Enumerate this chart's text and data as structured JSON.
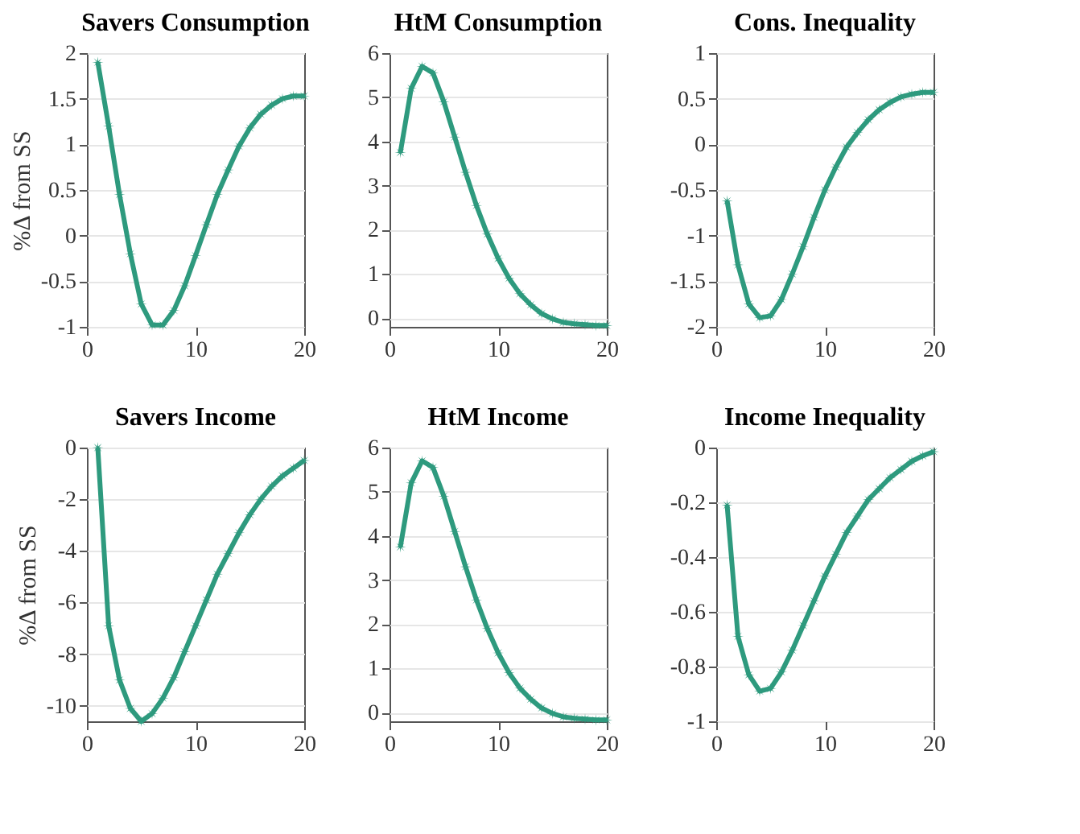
{
  "chart_data": [
    {
      "type": "line",
      "title": "Savers Consumption",
      "ylabel": "%Δ from SS",
      "color": "#2e9a7e",
      "marker": "star",
      "line_style": "solid",
      "grid": "y",
      "xlim": [
        0,
        20
      ],
      "xticks": [
        0,
        10,
        20
      ],
      "ylim": [
        -1,
        2
      ],
      "yticks": [
        -1,
        -0.5,
        0,
        0.5,
        1,
        1.5,
        2
      ],
      "x": [
        1,
        2,
        3,
        4,
        5,
        6,
        7,
        8,
        9,
        10,
        11,
        12,
        13,
        14,
        15,
        16,
        17,
        18,
        19,
        20
      ],
      "values": [
        1.9,
        1.2,
        0.45,
        -0.2,
        -0.75,
        -0.98,
        -0.98,
        -0.82,
        -0.55,
        -0.22,
        0.12,
        0.45,
        0.72,
        0.98,
        1.18,
        1.33,
        1.43,
        1.5,
        1.53,
        1.53
      ]
    },
    {
      "type": "line",
      "title": "HtM Consumption",
      "color": "#2e9a7e",
      "marker": "star",
      "line_style": "solid",
      "grid": "y",
      "xlim": [
        0,
        20
      ],
      "xticks": [
        0,
        10,
        20
      ],
      "ylim": [
        -0.2,
        6
      ],
      "yticks": [
        0,
        1,
        2,
        3,
        4,
        5,
        6
      ],
      "x": [
        1,
        2,
        3,
        4,
        5,
        6,
        7,
        8,
        9,
        10,
        11,
        12,
        13,
        14,
        15,
        16,
        17,
        18,
        19,
        20
      ],
      "values": [
        3.75,
        5.2,
        5.7,
        5.55,
        4.9,
        4.1,
        3.3,
        2.55,
        1.9,
        1.35,
        0.9,
        0.55,
        0.3,
        0.1,
        -0.02,
        -0.1,
        -0.13,
        -0.15,
        -0.17,
        -0.17
      ]
    },
    {
      "type": "line",
      "title": "Cons. Inequality",
      "color": "#2e9a7e",
      "marker": "star",
      "line_style": "solid",
      "grid": "y",
      "xlim": [
        0,
        20
      ],
      "xticks": [
        0,
        10,
        20
      ],
      "ylim": [
        -2,
        1
      ],
      "yticks": [
        -2,
        -1.5,
        -1,
        -0.5,
        0,
        0.5,
        1
      ],
      "x": [
        1,
        2,
        3,
        4,
        5,
        6,
        7,
        8,
        9,
        10,
        11,
        12,
        13,
        14,
        15,
        16,
        17,
        18,
        19,
        20
      ],
      "values": [
        -0.62,
        -1.32,
        -1.75,
        -1.9,
        -1.88,
        -1.7,
        -1.42,
        -1.12,
        -0.8,
        -0.5,
        -0.25,
        -0.03,
        0.13,
        0.27,
        0.38,
        0.46,
        0.52,
        0.55,
        0.57,
        0.57
      ]
    },
    {
      "type": "line",
      "title": "Savers Income",
      "ylabel": "%Δ from SS",
      "color": "#2e9a7e",
      "marker": "star",
      "line_style": "solid",
      "grid": "y",
      "xlim": [
        0,
        20
      ],
      "xticks": [
        0,
        10,
        20
      ],
      "ylim": [
        -10.6,
        0
      ],
      "yticks": [
        -10,
        -8,
        -6,
        -4,
        -2,
        0
      ],
      "x": [
        1,
        2,
        3,
        4,
        5,
        6,
        7,
        8,
        9,
        10,
        11,
        12,
        13,
        14,
        15,
        16,
        17,
        18,
        19,
        20
      ],
      "values": [
        0,
        -6.9,
        -9,
        -10.1,
        -10.6,
        -10.3,
        -9.7,
        -8.9,
        -7.9,
        -6.9,
        -5.9,
        -4.9,
        -4.1,
        -3.3,
        -2.6,
        -2.0,
        -1.5,
        -1.1,
        -0.8,
        -0.5
      ]
    },
    {
      "type": "line",
      "title": "HtM Income",
      "color": "#2e9a7e",
      "marker": "star",
      "line_style": "solid",
      "grid": "y",
      "xlim": [
        0,
        20
      ],
      "xticks": [
        0,
        10,
        20
      ],
      "ylim": [
        -0.2,
        6
      ],
      "yticks": [
        0,
        1,
        2,
        3,
        4,
        5,
        6
      ],
      "x": [
        1,
        2,
        3,
        4,
        5,
        6,
        7,
        8,
        9,
        10,
        11,
        12,
        13,
        14,
        15,
        16,
        17,
        18,
        19,
        20
      ],
      "values": [
        3.75,
        5.2,
        5.7,
        5.55,
        4.9,
        4.1,
        3.3,
        2.55,
        1.9,
        1.35,
        0.9,
        0.55,
        0.3,
        0.1,
        -0.02,
        -0.1,
        -0.13,
        -0.15,
        -0.17,
        -0.17
      ]
    },
    {
      "type": "line",
      "title": "Income Inequality",
      "color": "#2e9a7e",
      "marker": "star",
      "line_style": "solid",
      "grid": "y",
      "xlim": [
        0,
        20
      ],
      "xticks": [
        0,
        10,
        20
      ],
      "ylim": [
        -1,
        0
      ],
      "yticks": [
        -1,
        -0.8,
        -0.6,
        -0.4,
        -0.2,
        0
      ],
      "x": [
        1,
        2,
        3,
        4,
        5,
        6,
        7,
        8,
        9,
        10,
        11,
        12,
        13,
        14,
        15,
        16,
        17,
        18,
        19,
        20
      ],
      "values": [
        -0.21,
        -0.69,
        -0.83,
        -0.89,
        -0.88,
        -0.82,
        -0.74,
        -0.65,
        -0.56,
        -0.47,
        -0.39,
        -0.31,
        -0.25,
        -0.19,
        -0.15,
        -0.11,
        -0.08,
        -0.05,
        -0.03,
        -0.015
      ]
    }
  ]
}
